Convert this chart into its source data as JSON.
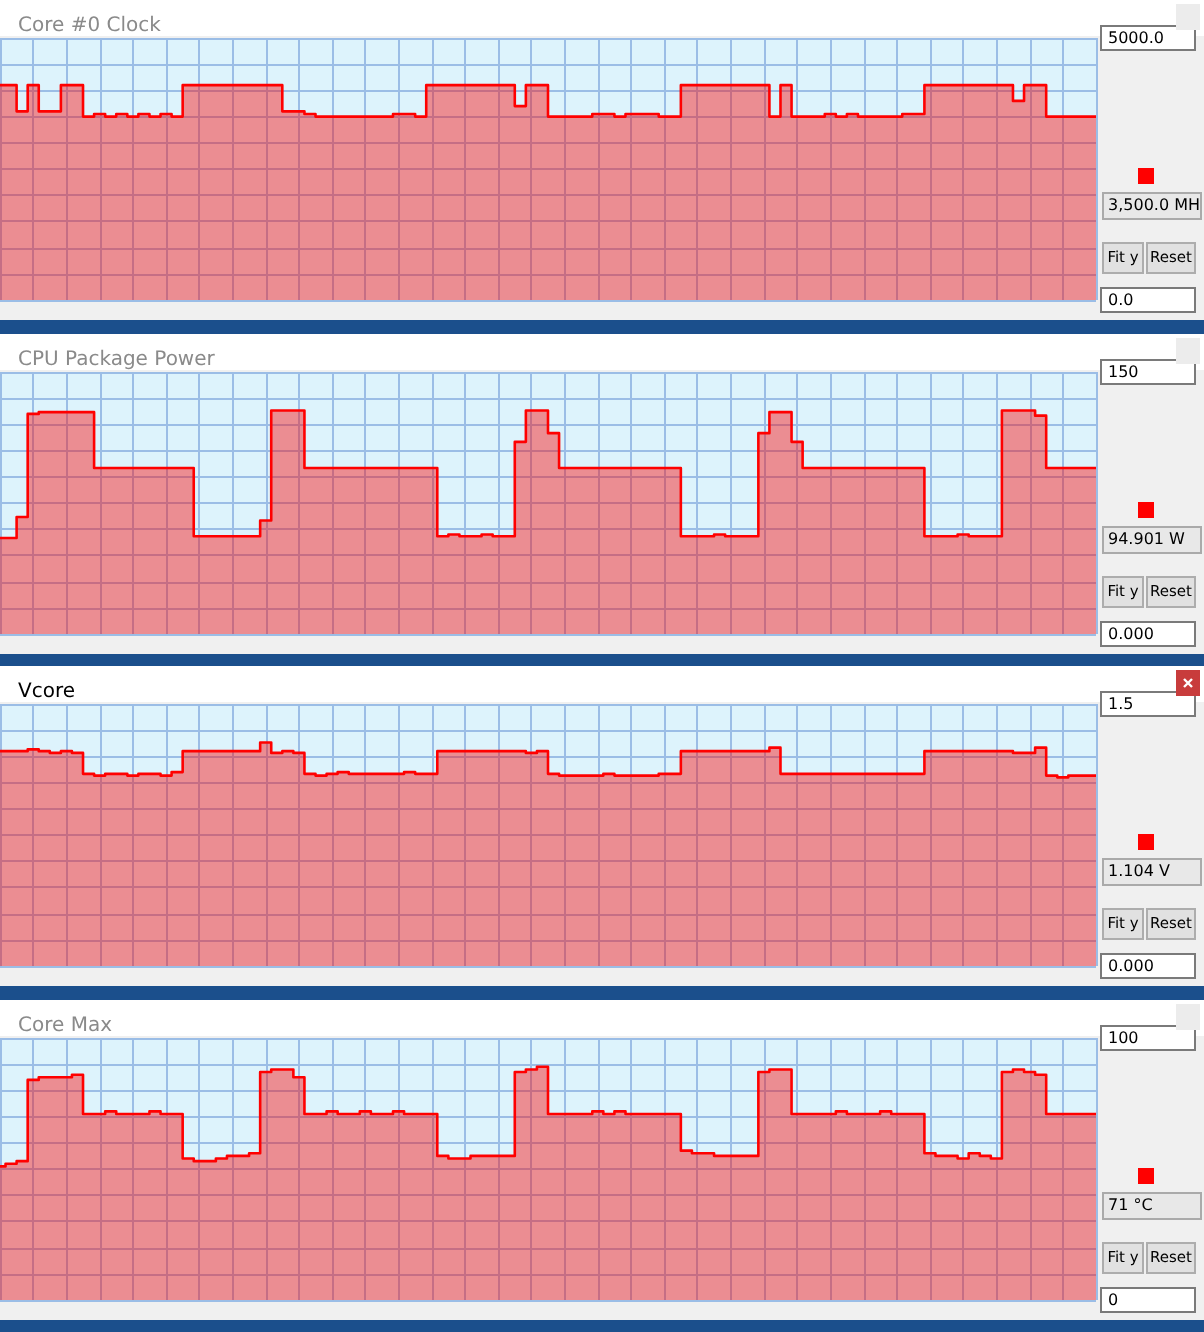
{
  "chart_data": [
    {
      "type": "area",
      "title": "Core #0 Clock",
      "categories": [
        null,
        null,
        null,
        null,
        null,
        null,
        null,
        null,
        null,
        null,
        null,
        null,
        null,
        null,
        null,
        null,
        null,
        null,
        null,
        null,
        null,
        null,
        null,
        null,
        null,
        null,
        null,
        null,
        null,
        null,
        null,
        null,
        null,
        null,
        null,
        null,
        null,
        null,
        null,
        null,
        null,
        null,
        null,
        null,
        null,
        null,
        null,
        null,
        null,
        null,
        null,
        null,
        null,
        null,
        null,
        null,
        null,
        null,
        null,
        null,
        null,
        null,
        null,
        null,
        null,
        null,
        null,
        null,
        null,
        null,
        null,
        null,
        null,
        null,
        null,
        null,
        null,
        null,
        null,
        null,
        null,
        null,
        null,
        null,
        null,
        null,
        null,
        null,
        null,
        null,
        null,
        null,
        null,
        null,
        null,
        null,
        null,
        null,
        null,
        null
      ],
      "values": [
        4100,
        4100,
        3600,
        4100,
        3600,
        3600,
        4100,
        4100,
        3500,
        3550,
        3500,
        3550,
        3500,
        3550,
        3500,
        3550,
        3500,
        4100,
        4100,
        4100,
        4100,
        4100,
        4100,
        4100,
        4100,
        4100,
        3600,
        3600,
        3550,
        3500,
        3500,
        3500,
        3500,
        3500,
        3500,
        3500,
        3550,
        3550,
        3500,
        4100,
        4100,
        4100,
        4100,
        4100,
        4100,
        4100,
        4100,
        3700,
        4100,
        4100,
        3500,
        3500,
        3500,
        3500,
        3550,
        3550,
        3500,
        3550,
        3550,
        3550,
        3500,
        3500,
        4100,
        4100,
        4100,
        4100,
        4100,
        4100,
        4100,
        4100,
        3500,
        4100,
        3500,
        3500,
        3500,
        3550,
        3500,
        3550,
        3500,
        3500,
        3500,
        3500,
        3550,
        3550,
        4100,
        4100,
        4100,
        4100,
        4100,
        4100,
        4100,
        4100,
        3800,
        4100,
        4100,
        3500,
        3500,
        3500,
        3500,
        3500
      ],
      "color": "#ff0000",
      "ylim": [
        0,
        5000
      ],
      "yticks": [
        {
          "value": 0,
          "label": "0.0"
        },
        {
          "value": 500,
          "label": null
        },
        {
          "value": 1000,
          "label": null
        },
        {
          "value": 1500,
          "label": null
        },
        {
          "value": 2000,
          "label": null
        },
        {
          "value": 2500,
          "label": null
        },
        {
          "value": 3000,
          "label": null
        },
        {
          "value": 3500,
          "label": null
        },
        {
          "value": 4000,
          "label": null
        },
        {
          "value": 4500,
          "label": null
        },
        {
          "value": 5000,
          "label": "5000.0"
        }
      ],
      "grid": true,
      "tick_labels": "y",
      "annotations": [
        "3,500.0 MH",
        "Fit y",
        "Reset"
      ]
    },
    {
      "type": "area",
      "title": "CPU Package Power",
      "categories": [
        null,
        null,
        null,
        null,
        null,
        null,
        null,
        null,
        null,
        null,
        null,
        null,
        null,
        null,
        null,
        null,
        null,
        null,
        null,
        null,
        null,
        null,
        null,
        null,
        null,
        null,
        null,
        null,
        null,
        null,
        null,
        null,
        null,
        null,
        null,
        null,
        null,
        null,
        null,
        null,
        null,
        null,
        null,
        null,
        null,
        null,
        null,
        null,
        null,
        null,
        null,
        null,
        null,
        null,
        null,
        null,
        null,
        null,
        null,
        null,
        null,
        null,
        null,
        null,
        null,
        null,
        null,
        null,
        null,
        null,
        null,
        null,
        null,
        null,
        null,
        null,
        null,
        null,
        null,
        null,
        null,
        null,
        null,
        null,
        null,
        null,
        null,
        null,
        null,
        null,
        null,
        null,
        null,
        null,
        null,
        null,
        null,
        null,
        null,
        null
      ],
      "values": [
        55,
        55,
        67,
        126,
        127,
        127,
        127,
        127,
        127,
        95,
        95,
        95,
        95,
        95,
        95,
        95,
        95,
        95,
        56,
        56,
        56,
        56,
        56,
        56,
        65,
        128,
        128,
        128,
        95,
        95,
        95,
        95,
        95,
        95,
        95,
        95,
        95,
        95,
        95,
        95,
        56,
        57,
        56,
        56,
        57,
        56,
        56,
        110,
        128,
        128,
        115,
        95,
        95,
        95,
        95,
        95,
        95,
        95,
        95,
        95,
        95,
        95,
        56,
        56,
        56,
        57,
        56,
        56,
        56,
        115,
        127,
        127,
        110,
        95,
        95,
        95,
        95,
        95,
        95,
        95,
        95,
        95,
        95,
        95,
        56,
        56,
        56,
        57,
        56,
        56,
        56,
        128,
        128,
        128,
        125,
        95,
        95,
        95,
        95,
        95
      ],
      "color": "#ff0000",
      "ylim": [
        0,
        150
      ],
      "yticks": [
        {
          "value": 0,
          "label": "0.000"
        },
        {
          "value": 15,
          "label": null
        },
        {
          "value": 30,
          "label": null
        },
        {
          "value": 45,
          "label": null
        },
        {
          "value": 60,
          "label": null
        },
        {
          "value": 75,
          "label": null
        },
        {
          "value": 90,
          "label": null
        },
        {
          "value": 105,
          "label": null
        },
        {
          "value": 120,
          "label": null
        },
        {
          "value": 135,
          "label": null
        },
        150
      ],
      "grid": true,
      "tick_labels": "y",
      "annotations": [
        "94.901 W",
        "Fit y",
        "Reset"
      ]
    },
    {
      "type": "area",
      "title": "Vcore",
      "categories": [
        null,
        null,
        null,
        null,
        null,
        null,
        null,
        null,
        null,
        null,
        null,
        null,
        null,
        null,
        null,
        null,
        null,
        null,
        null,
        null,
        null,
        null,
        null,
        null,
        null,
        null,
        null,
        null,
        null,
        null,
        null,
        null,
        null,
        null,
        null,
        null,
        null,
        null,
        null,
        null,
        null,
        null,
        null,
        null,
        null,
        null,
        null,
        null,
        null,
        null,
        null,
        null,
        null,
        null,
        null,
        null,
        null,
        null,
        null,
        null,
        null,
        null,
        null,
        null,
        null,
        null,
        null,
        null,
        null,
        null,
        null,
        null,
        null,
        null,
        null,
        null,
        null,
        null,
        null,
        null,
        null,
        null,
        null,
        null,
        null,
        null,
        null,
        null,
        null,
        null,
        null,
        null,
        null,
        null,
        null,
        null,
        null,
        null,
        null,
        null
      ],
      "values": [
        1.23,
        1.23,
        1.23,
        1.24,
        1.23,
        1.22,
        1.23,
        1.22,
        1.1,
        1.09,
        1.1,
        1.1,
        1.09,
        1.1,
        1.1,
        1.09,
        1.11,
        1.23,
        1.23,
        1.23,
        1.23,
        1.23,
        1.23,
        1.23,
        1.28,
        1.22,
        1.23,
        1.22,
        1.1,
        1.09,
        1.1,
        1.11,
        1.1,
        1.1,
        1.1,
        1.1,
        1.1,
        1.11,
        1.1,
        1.1,
        1.23,
        1.23,
        1.23,
        1.23,
        1.23,
        1.23,
        1.23,
        1.23,
        1.22,
        1.23,
        1.1,
        1.09,
        1.09,
        1.09,
        1.09,
        1.1,
        1.09,
        1.09,
        1.09,
        1.09,
        1.1,
        1.1,
        1.23,
        1.23,
        1.23,
        1.23,
        1.23,
        1.23,
        1.23,
        1.23,
        1.25,
        1.1,
        1.1,
        1.1,
        1.1,
        1.1,
        1.1,
        1.1,
        1.1,
        1.1,
        1.1,
        1.1,
        1.1,
        1.1,
        1.23,
        1.23,
        1.23,
        1.23,
        1.23,
        1.23,
        1.23,
        1.23,
        1.22,
        1.22,
        1.25,
        1.09,
        1.08,
        1.09,
        1.09,
        1.09
      ],
      "color": "#ff0000",
      "ylim": [
        0,
        1.5
      ],
      "yticks": [
        {
          "value": 0,
          "label": "0.000"
        },
        {
          "value": 0.15,
          "label": null
        },
        {
          "value": 0.3,
          "label": null
        },
        {
          "value": 0.45,
          "label": null
        },
        {
          "value": 0.6,
          "label": null
        },
        {
          "value": 0.75,
          "label": null
        },
        {
          "value": 0.9,
          "label": null
        },
        {
          "value": 1.05,
          "label": null
        },
        {
          "value": 1.2,
          "label": null
        },
        {
          "value": 1.35,
          "label": null
        },
        1.5
      ],
      "grid": true,
      "tick_labels": "y",
      "annotations": [
        "1.104 V",
        "Fit y",
        "Reset"
      ]
    },
    {
      "type": "area",
      "title": "Core Max",
      "categories": [
        null,
        null,
        null,
        null,
        null,
        null,
        null,
        null,
        null,
        null,
        null,
        null,
        null,
        null,
        null,
        null,
        null,
        null,
        null,
        null,
        null,
        null,
        null,
        null,
        null,
        null,
        null,
        null,
        null,
        null,
        null,
        null,
        null,
        null,
        null,
        null,
        null,
        null,
        null,
        null,
        null,
        null,
        null,
        null,
        null,
        null,
        null,
        null,
        null,
        null,
        null,
        null,
        null,
        null,
        null,
        null,
        null,
        null,
        null,
        null,
        null,
        null,
        null,
        null,
        null,
        null,
        null,
        null,
        null,
        null,
        null,
        null,
        null,
        null,
        null,
        null,
        null,
        null,
        null,
        null,
        null,
        null,
        null,
        null,
        null,
        null,
        null,
        null,
        null,
        null,
        null,
        null,
        null,
        null,
        null,
        null,
        null,
        null,
        null,
        null
      ],
      "values": [
        51,
        52,
        53,
        84,
        85,
        85,
        85,
        86,
        71,
        71,
        72,
        71,
        71,
        71,
        72,
        71,
        71,
        54,
        53,
        53,
        54,
        55,
        55,
        56,
        87,
        88,
        88,
        85,
        71,
        71,
        72,
        71,
        71,
        72,
        71,
        71,
        72,
        71,
        71,
        71,
        55,
        54,
        54,
        55,
        55,
        55,
        55,
        87,
        88,
        89,
        71,
        71,
        71,
        71,
        72,
        71,
        72,
        71,
        71,
        71,
        71,
        71,
        57,
        56,
        56,
        55,
        55,
        55,
        55,
        87,
        88,
        88,
        71,
        71,
        71,
        71,
        72,
        71,
        71,
        71,
        72,
        71,
        71,
        71,
        56,
        55,
        55,
        54,
        56,
        55,
        54,
        87,
        88,
        87,
        86,
        71,
        71,
        71,
        71,
        71
      ],
      "color": "#ff0000",
      "ylim": [
        0,
        100
      ],
      "yticks": [
        0,
        {
          "value": 10,
          "label": null
        },
        {
          "value": 20,
          "label": null
        },
        {
          "value": 30,
          "label": null
        },
        {
          "value": 40,
          "label": null
        },
        {
          "value": 50,
          "label": null
        },
        {
          "value": 60,
          "label": null
        },
        {
          "value": 70,
          "label": null
        },
        {
          "value": 80,
          "label": null
        },
        {
          "value": 90,
          "label": null
        },
        100
      ],
      "grid": true,
      "tick_labels": "y",
      "annotations": [
        "71 °C",
        "Fit y",
        "Reset"
      ]
    }
  ]
}
